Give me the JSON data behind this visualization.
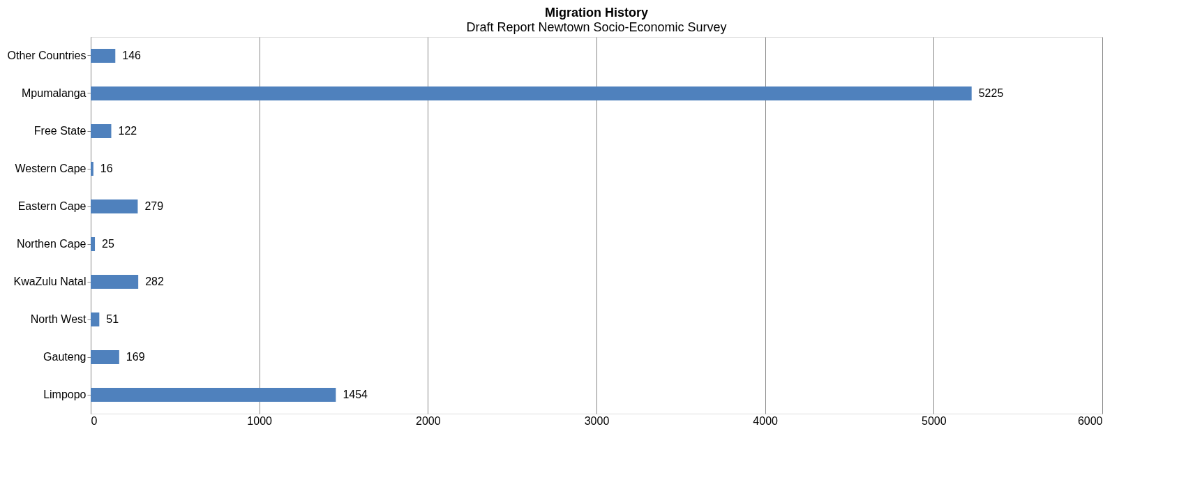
{
  "chart_data": {
    "type": "bar",
    "orientation": "horizontal",
    "title": "Migration History",
    "annotations": [
      "Draft Report Newtown Socio-Economic Survey"
    ],
    "categories": [
      "Other Countries",
      "Mpumalanga",
      "Free State",
      "Western Cape",
      "Eastern Cape",
      "Northen Cape",
      "KwaZulu Natal",
      "North West",
      "Gauteng",
      "Limpopo"
    ],
    "values": [
      146,
      5225,
      122,
      16,
      279,
      25,
      282,
      51,
      169,
      1454
    ],
    "color": "#4f81bd",
    "xlim": [
      0,
      6000
    ],
    "xticks": [
      0,
      1000,
      2000,
      3000,
      4000,
      5000,
      6000
    ],
    "grid": "x",
    "data_labels": true
  }
}
